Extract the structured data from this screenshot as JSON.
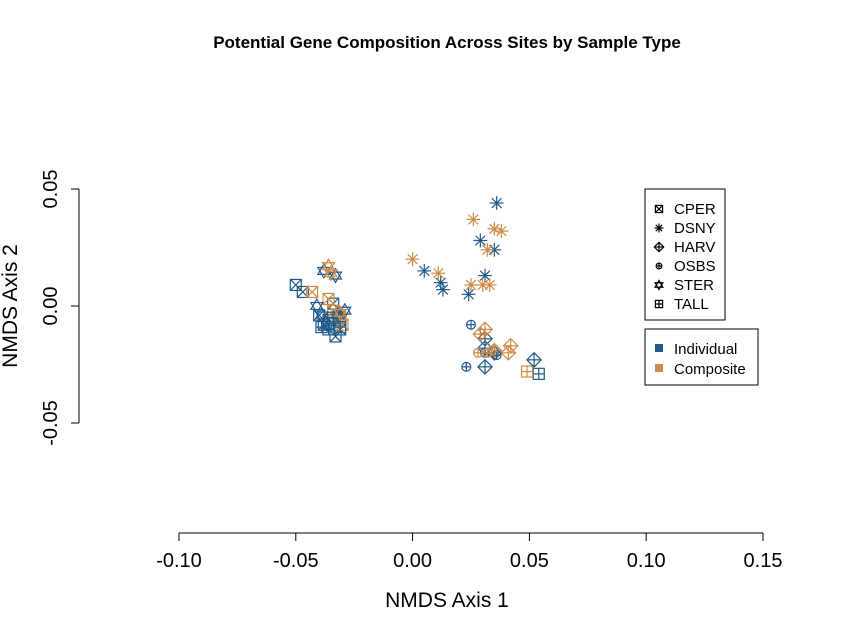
{
  "chart_data": {
    "type": "scatter",
    "title": "Potential Gene Composition Across Sites by Sample Type",
    "xlabel": "NMDS Axis 1",
    "ylabel": "NMDS Axis 2",
    "xlim": [
      -0.1,
      0.15
    ],
    "ylim": [
      -0.05,
      0.05
    ],
    "x_ticks": [
      -0.1,
      -0.05,
      0.0,
      0.05,
      0.1,
      0.15
    ],
    "x_tick_labels": [
      "-0.10",
      "-0.05",
      "0.00",
      "0.05",
      "0.10",
      "0.15"
    ],
    "y_ticks": [
      -0.05,
      0.0,
      0.05
    ],
    "y_tick_labels": [
      "-0.05",
      "0.00",
      "0.05"
    ],
    "grid": false,
    "legend_position": "right",
    "colors": {
      "Individual": "#1f5a8a",
      "Composite": "#cf8a45"
    },
    "legend_sites": [
      {
        "label": "CPER",
        "shape": "square-x"
      },
      {
        "label": "DSNY",
        "shape": "asterisk"
      },
      {
        "label": "HARV",
        "shape": "diamond-plus"
      },
      {
        "label": "OSBS",
        "shape": "circle-plus"
      },
      {
        "label": "STER",
        "shape": "star-of-david"
      },
      {
        "label": "TALL",
        "shape": "square-plus"
      }
    ],
    "legend_types": [
      {
        "label": "Individual",
        "color": "#1f5a8a"
      },
      {
        "label": "Composite",
        "color": "#cf8a45"
      }
    ],
    "points": [
      {
        "x": -0.05,
        "y": 0.009,
        "site": "CPER",
        "type": "Individual"
      },
      {
        "x": -0.047,
        "y": 0.006,
        "site": "CPER",
        "type": "Individual"
      },
      {
        "x": -0.04,
        "y": -0.004,
        "site": "CPER",
        "type": "Individual"
      },
      {
        "x": -0.038,
        "y": -0.008,
        "site": "CPER",
        "type": "Individual"
      },
      {
        "x": -0.036,
        "y": -0.006,
        "site": "CPER",
        "type": "Individual"
      },
      {
        "x": -0.034,
        "y": 0.001,
        "site": "CPER",
        "type": "Individual"
      },
      {
        "x": -0.033,
        "y": -0.013,
        "site": "CPER",
        "type": "Individual"
      },
      {
        "x": -0.031,
        "y": -0.006,
        "site": "CPER",
        "type": "Individual"
      },
      {
        "x": -0.031,
        "y": -0.01,
        "site": "CPER",
        "type": "Individual"
      },
      {
        "x": -0.043,
        "y": 0.006,
        "site": "CPER",
        "type": "Composite"
      },
      {
        "x": -0.036,
        "y": 0.003,
        "site": "CPER",
        "type": "Composite"
      },
      {
        "x": -0.034,
        "y": -0.002,
        "site": "CPER",
        "type": "Composite"
      },
      {
        "x": -0.031,
        "y": -0.004,
        "site": "CPER",
        "type": "Composite"
      },
      {
        "x": -0.03,
        "y": -0.008,
        "site": "CPER",
        "type": "Composite"
      },
      {
        "x": -0.039,
        "y": -0.009,
        "site": "TALL",
        "type": "Individual"
      },
      {
        "x": -0.036,
        "y": -0.01,
        "site": "TALL",
        "type": "Individual"
      },
      {
        "x": -0.034,
        "y": -0.005,
        "site": "TALL",
        "type": "Individual"
      },
      {
        "x": -0.031,
        "y": -0.009,
        "site": "TALL",
        "type": "Individual"
      },
      {
        "x": 0.054,
        "y": -0.029,
        "site": "TALL",
        "type": "Individual"
      },
      {
        "x": 0.049,
        "y": -0.028,
        "site": "TALL",
        "type": "Composite"
      },
      {
        "x": -0.041,
        "y": 0.0,
        "site": "STER",
        "type": "Individual"
      },
      {
        "x": -0.039,
        "y": -0.004,
        "site": "STER",
        "type": "Individual"
      },
      {
        "x": -0.038,
        "y": 0.015,
        "site": "STER",
        "type": "Individual"
      },
      {
        "x": -0.036,
        "y": -0.008,
        "site": "STER",
        "type": "Individual"
      },
      {
        "x": -0.033,
        "y": 0.013,
        "site": "STER",
        "type": "Individual"
      },
      {
        "x": -0.032,
        "y": -0.004,
        "site": "STER",
        "type": "Individual"
      },
      {
        "x": -0.029,
        "y": -0.002,
        "site": "STER",
        "type": "Individual"
      },
      {
        "x": -0.036,
        "y": 0.017,
        "site": "STER",
        "type": "Composite"
      },
      {
        "x": -0.035,
        "y": 0.014,
        "site": "STER",
        "type": "Composite"
      },
      {
        "x": -0.031,
        "y": -0.003,
        "site": "STER",
        "type": "Composite"
      },
      {
        "x": 0.005,
        "y": 0.015,
        "site": "DSNY",
        "type": "Individual"
      },
      {
        "x": 0.012,
        "y": 0.01,
        "site": "DSNY",
        "type": "Individual"
      },
      {
        "x": 0.013,
        "y": 0.007,
        "site": "DSNY",
        "type": "Individual"
      },
      {
        "x": 0.024,
        "y": 0.005,
        "site": "DSNY",
        "type": "Individual"
      },
      {
        "x": 0.029,
        "y": 0.028,
        "site": "DSNY",
        "type": "Individual"
      },
      {
        "x": 0.031,
        "y": 0.013,
        "site": "DSNY",
        "type": "Individual"
      },
      {
        "x": 0.035,
        "y": 0.024,
        "site": "DSNY",
        "type": "Individual"
      },
      {
        "x": 0.036,
        "y": 0.044,
        "site": "DSNY",
        "type": "Individual"
      },
      {
        "x": 0.0,
        "y": 0.02,
        "site": "DSNY",
        "type": "Composite"
      },
      {
        "x": 0.011,
        "y": 0.014,
        "site": "DSNY",
        "type": "Composite"
      },
      {
        "x": 0.025,
        "y": 0.009,
        "site": "DSNY",
        "type": "Composite"
      },
      {
        "x": 0.026,
        "y": 0.037,
        "site": "DSNY",
        "type": "Composite"
      },
      {
        "x": 0.03,
        "y": 0.009,
        "site": "DSNY",
        "type": "Composite"
      },
      {
        "x": 0.032,
        "y": 0.024,
        "site": "DSNY",
        "type": "Composite"
      },
      {
        "x": 0.033,
        "y": 0.009,
        "site": "DSNY",
        "type": "Composite"
      },
      {
        "x": 0.035,
        "y": 0.033,
        "site": "DSNY",
        "type": "Composite"
      },
      {
        "x": 0.038,
        "y": 0.032,
        "site": "DSNY",
        "type": "Composite"
      },
      {
        "x": 0.031,
        "y": -0.014,
        "site": "HARV",
        "type": "Individual"
      },
      {
        "x": 0.031,
        "y": -0.018,
        "site": "HARV",
        "type": "Individual"
      },
      {
        "x": 0.031,
        "y": -0.026,
        "site": "HARV",
        "type": "Individual"
      },
      {
        "x": 0.035,
        "y": -0.02,
        "site": "HARV",
        "type": "Individual"
      },
      {
        "x": 0.052,
        "y": -0.023,
        "site": "HARV",
        "type": "Individual"
      },
      {
        "x": 0.029,
        "y": -0.012,
        "site": "HARV",
        "type": "Composite"
      },
      {
        "x": 0.031,
        "y": -0.01,
        "site": "HARV",
        "type": "Composite"
      },
      {
        "x": 0.035,
        "y": -0.019,
        "site": "HARV",
        "type": "Composite"
      },
      {
        "x": 0.041,
        "y": -0.02,
        "site": "HARV",
        "type": "Composite"
      },
      {
        "x": 0.042,
        "y": -0.017,
        "site": "HARV",
        "type": "Composite"
      },
      {
        "x": 0.023,
        "y": -0.026,
        "site": "OSBS",
        "type": "Individual"
      },
      {
        "x": 0.025,
        "y": -0.008,
        "site": "OSBS",
        "type": "Individual"
      },
      {
        "x": 0.031,
        "y": -0.02,
        "site": "OSBS",
        "type": "Individual"
      },
      {
        "x": 0.036,
        "y": -0.021,
        "site": "OSBS",
        "type": "Individual"
      },
      {
        "x": 0.028,
        "y": -0.02,
        "site": "OSBS",
        "type": "Composite"
      },
      {
        "x": 0.032,
        "y": -0.02,
        "site": "OSBS",
        "type": "Composite"
      },
      {
        "x": 0.034,
        "y": -0.019,
        "site": "OSBS",
        "type": "Composite"
      }
    ]
  }
}
